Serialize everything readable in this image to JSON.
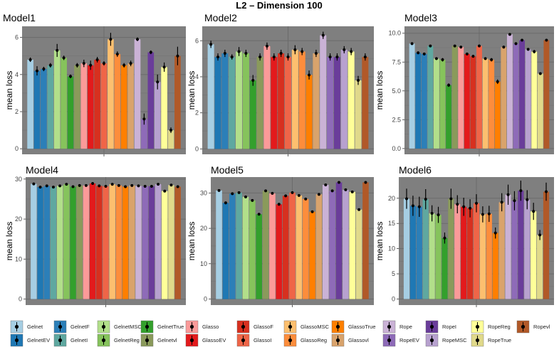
{
  "title": "L2 – Dimension 100",
  "chart_data": {
    "type": "bar",
    "title": "L2 – Dimension 100",
    "ylabel": "mean loss",
    "methods": [
      "Gelnet",
      "GelnetEV",
      "GelnetF",
      "GelnetI",
      "GelnetMSC",
      "GelnetReg",
      "GelnetTrue",
      "Gelnetvl",
      "Glasso",
      "GlassoEV",
      "GlassoF",
      "GlassoI",
      "GlassoMSC",
      "GlassoReg",
      "GlassoTrue",
      "Glassovl",
      "Rope",
      "RopeEV",
      "RopeI",
      "RopeMSC",
      "RopeReg",
      "RopeTrue",
      "Ropevl"
    ],
    "colors": [
      "#a6cee3",
      "#1f78b4",
      "#2c7fb8",
      "#5fa8a0",
      "#b2df8a",
      "#86c35c",
      "#33a02c",
      "#8a9a5b",
      "#fb9a99",
      "#e31a1c",
      "#d7301f",
      "#ef6548",
      "#fdbf6f",
      "#fd8d3c",
      "#ff7f00",
      "#d9a36c",
      "#cab2d6",
      "#8e6bb8",
      "#6a3d9a",
      "#b7a1cf",
      "#ffff99",
      "#e0d98a",
      "#b15928"
    ],
    "panels": [
      {
        "title": "Model1",
        "ylim": [
          -0.3,
          6.6
        ],
        "ticks": [
          0,
          2,
          4,
          6
        ],
        "values": [
          4.8,
          4.2,
          4.3,
          4.5,
          5.3,
          4.9,
          3.9,
          4.5,
          4.6,
          4.5,
          4.8,
          4.6,
          5.9,
          5.1,
          4.5,
          4.6,
          5.9,
          1.6,
          5.2,
          3.6,
          4.4,
          1.0,
          5.0
        ],
        "errors": [
          0.12,
          0.25,
          0.12,
          0.12,
          0.35,
          0.12,
          0.1,
          0.12,
          0.2,
          0.25,
          0.15,
          0.12,
          0.35,
          0.15,
          0.12,
          0.15,
          0.1,
          0.3,
          0.1,
          0.4,
          0.25,
          0.15,
          0.5
        ]
      },
      {
        "title": "Model2",
        "ylim": [
          -0.3,
          6.8
        ],
        "ticks": [
          0,
          2,
          4,
          6
        ],
        "values": [
          5.8,
          5.1,
          5.3,
          5.1,
          5.4,
          5.3,
          3.8,
          5.1,
          5.7,
          5.1,
          5.3,
          5.1,
          5.5,
          5.4,
          4.1,
          5.3,
          6.3,
          5.1,
          5.1,
          5.5,
          5.4,
          3.8,
          5.1
        ],
        "errors": [
          0.2,
          0.2,
          0.2,
          0.15,
          0.25,
          0.2,
          0.3,
          0.2,
          0.2,
          0.2,
          0.2,
          0.2,
          0.25,
          0.2,
          0.25,
          0.2,
          0.2,
          0.2,
          0.2,
          0.2,
          0.2,
          0.25,
          0.2
        ]
      },
      {
        "title": "Model3",
        "ylim": [
          -0.5,
          10.6
        ],
        "ticks": [
          0.0,
          2.5,
          5.0,
          7.5,
          10.0
        ],
        "tick_labels": [
          "0.0",
          "2.5",
          "5.0",
          "7.5",
          "10.0"
        ],
        "values": [
          9.1,
          8.3,
          8.2,
          8.9,
          7.8,
          7.7,
          5.5,
          8.9,
          8.8,
          8.2,
          8.0,
          8.9,
          7.8,
          7.7,
          5.8,
          8.8,
          9.9,
          9.1,
          9.4,
          8.6,
          8.4,
          6.5,
          9.4
        ],
        "errors": [
          0.12,
          0.12,
          0.12,
          0.1,
          0.12,
          0.15,
          0.15,
          0.1,
          0.12,
          0.12,
          0.12,
          0.12,
          0.12,
          0.15,
          0.2,
          0.12,
          0.1,
          0.12,
          0.1,
          0.12,
          0.15,
          0.1,
          0.1
        ]
      },
      {
        "title": "Model4",
        "ylim": [
          -1.5,
          30.5
        ],
        "ticks": [
          0,
          10,
          20,
          30
        ],
        "values": [
          28.8,
          28.0,
          28.3,
          28.0,
          28.3,
          28.7,
          28.1,
          28.4,
          28.4,
          28.9,
          28.3,
          28.2,
          28.7,
          28.4,
          28.1,
          28.4,
          28.3,
          28.2,
          28.2,
          28.7,
          27.0,
          28.5,
          28.1
        ],
        "errors": [
          0.3,
          0.3,
          0.3,
          0.3,
          0.3,
          0.3,
          0.3,
          0.3,
          0.3,
          0.3,
          0.3,
          0.3,
          0.3,
          0.3,
          0.3,
          0.3,
          0.3,
          0.3,
          0.3,
          0.3,
          0.3,
          0.3,
          0.3
        ]
      },
      {
        "title": "Model5",
        "ylim": [
          -1.7,
          34.5
        ],
        "ticks": [
          0,
          10,
          20,
          30
        ],
        "values": [
          30.7,
          27.2,
          29.8,
          30.1,
          28.9,
          27.9,
          24.0,
          30.6,
          29.9,
          26.8,
          29.2,
          30.1,
          29.3,
          28.3,
          24.7,
          29.6,
          32.3,
          30.6,
          33.0,
          30.9,
          30.3,
          25.3,
          33.0
        ],
        "errors": [
          0.3,
          0.4,
          0.3,
          0.3,
          0.3,
          0.3,
          0.3,
          0.3,
          0.3,
          0.4,
          0.3,
          0.3,
          0.3,
          0.3,
          0.3,
          0.3,
          0.3,
          0.3,
          0.3,
          0.3,
          0.3,
          0.3,
          0.3
        ]
      },
      {
        "title": "Model6",
        "ylim": [
          -1.2,
          24.2
        ],
        "ticks": [
          0,
          5,
          10,
          15,
          20
        ],
        "values": [
          19.9,
          18.5,
          18.3,
          19.8,
          17.0,
          16.7,
          12.1,
          19.9,
          18.8,
          18.3,
          18.0,
          19.0,
          16.8,
          16.9,
          13.1,
          19.2,
          20.7,
          19.5,
          21.5,
          19.7,
          17.4,
          12.7,
          21.3
        ],
        "errors": [
          2.0,
          2.0,
          2.0,
          2.0,
          1.6,
          1.6,
          1.1,
          2.0,
          1.8,
          1.8,
          1.8,
          1.8,
          1.6,
          1.6,
          1.1,
          1.8,
          2.0,
          1.9,
          2.0,
          1.9,
          1.7,
          1.0,
          1.8
        ]
      }
    ]
  },
  "legend": {
    "row1": [
      "Gelnet",
      "GelnetF",
      "GelnetMSC",
      "GelnetTrue",
      "Glasso",
      "GlassoF",
      "GlassoMSC",
      "GlassoTrue",
      "Rope",
      "RopeI",
      "RopeReg",
      "Ropevl"
    ],
    "row2": [
      "GelnetEV",
      "GelnetI",
      "GelnetReg",
      "Gelnetvl",
      "GlassoEV",
      "GlassoI",
      "GlassoReg",
      "Glassovl",
      "RopeEV",
      "RopeMSC",
      "RopeTrue"
    ]
  }
}
